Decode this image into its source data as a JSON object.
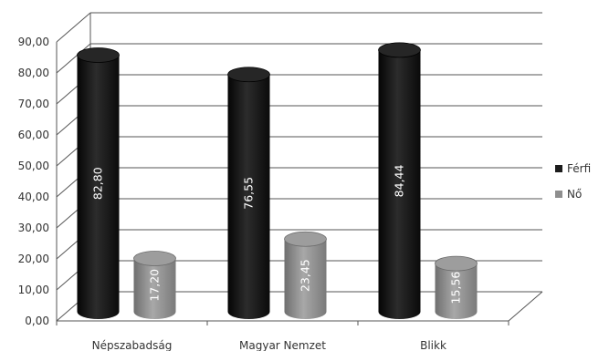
{
  "chart_data": {
    "type": "bar",
    "categories": [
      "Népszabadság",
      "Magyar Nemzet",
      "Blikk"
    ],
    "series": [
      {
        "name": "Férfi",
        "color": "#1c1c1c",
        "values": [
          82.8,
          76.55,
          84.44
        ],
        "labels": [
          "82,80",
          "76,55",
          "84,44"
        ]
      },
      {
        "name": "Nő",
        "color": "#8e8e8e",
        "values": [
          17.2,
          23.45,
          15.56
        ],
        "labels": [
          "17,20",
          "23,45",
          "15,56"
        ]
      }
    ],
    "ylim": [
      0,
      90
    ],
    "yticks": [
      "0,00",
      "10,00",
      "20,00",
      "30,00",
      "40,00",
      "50,00",
      "60,00",
      "70,00",
      "80,00",
      "90,00"
    ],
    "grid": true,
    "legend_position": "right",
    "style": "3d-cylinder"
  }
}
